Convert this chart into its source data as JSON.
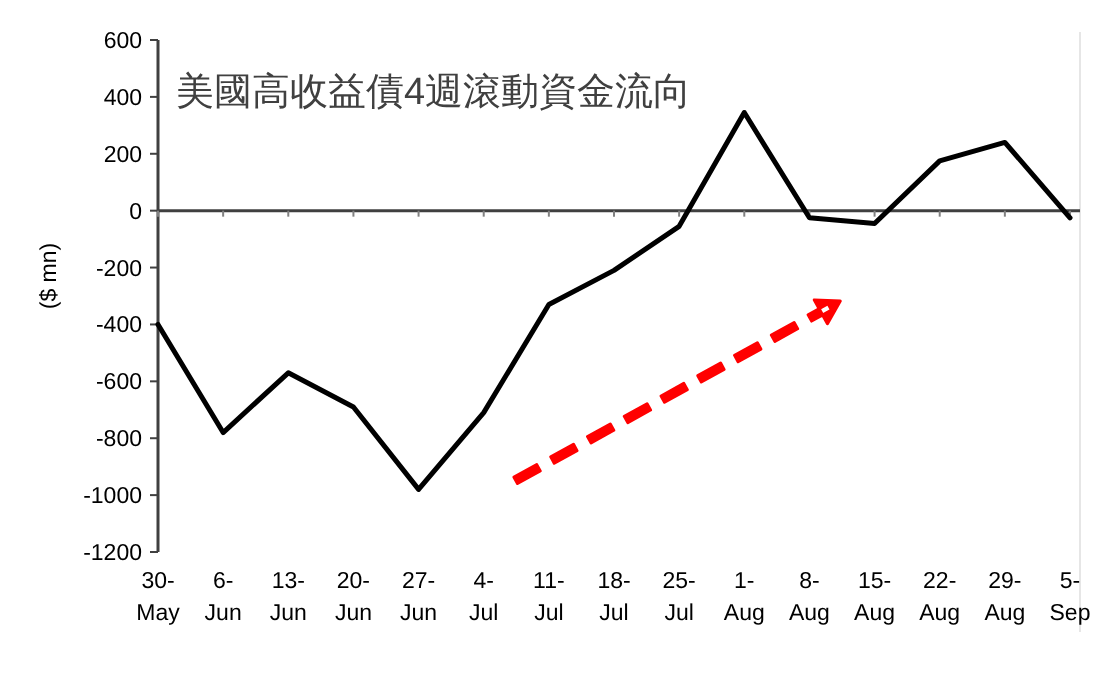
{
  "chart_data": {
    "type": "line",
    "title": "美國高收益債4週滾動資金流向",
    "ylabel": "($ mn)",
    "categories": [
      "30-May",
      "6-Jun",
      "13-Jun",
      "20-Jun",
      "27-Jun",
      "4-Jul",
      "11-Jul",
      "18-Jul",
      "25-Jul",
      "1-Aug",
      "8-Aug",
      "15-Aug",
      "22-Aug",
      "29-Aug",
      "5-Sep"
    ],
    "values": [
      -400,
      -780,
      -570,
      -690,
      -980,
      -710,
      -330,
      -210,
      -55,
      345,
      -25,
      -45,
      175,
      240,
      -25
    ],
    "color": "#000000",
    "ylim": [
      -1200,
      600
    ],
    "yticks": [
      -1200,
      -1000,
      -800,
      -600,
      -400,
      -200,
      0,
      200,
      400,
      600
    ],
    "marker": "none",
    "line_style": "solid"
  }
}
